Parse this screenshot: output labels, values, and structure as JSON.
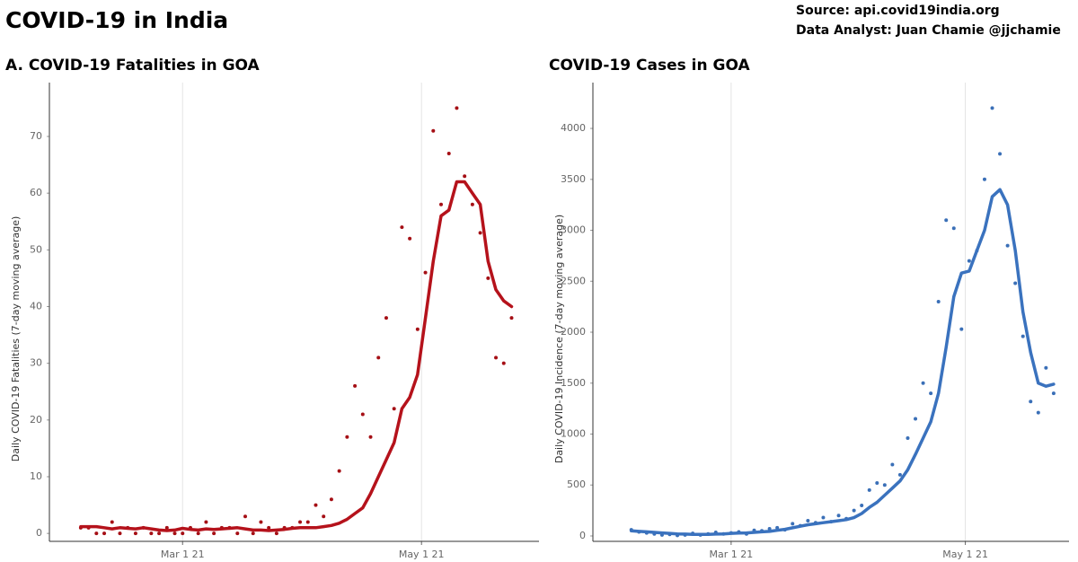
{
  "title": "COVID-19 in India",
  "source": "Source: api.covid19india.org",
  "analyst": "Data Analyst:  Juan Chamie @jjchamie",
  "chart_data": [
    {
      "type": "line",
      "title": "A. COVID-19 Fatalities in GOA",
      "y_label": "Daily COVID-19 Fatalities (7-day moving average)",
      "x": [
        "2021-02-03",
        "2021-02-05",
        "2021-02-07",
        "2021-02-09",
        "2021-02-11",
        "2021-02-13",
        "2021-02-15",
        "2021-02-17",
        "2021-02-19",
        "2021-02-21",
        "2021-02-23",
        "2021-02-25",
        "2021-02-27",
        "2021-03-01",
        "2021-03-03",
        "2021-03-05",
        "2021-03-07",
        "2021-03-09",
        "2021-03-11",
        "2021-03-13",
        "2021-03-15",
        "2021-03-17",
        "2021-03-19",
        "2021-03-21",
        "2021-03-23",
        "2021-03-25",
        "2021-03-27",
        "2021-03-29",
        "2021-03-31",
        "2021-04-02",
        "2021-04-04",
        "2021-04-06",
        "2021-04-08",
        "2021-04-10",
        "2021-04-12",
        "2021-04-14",
        "2021-04-16",
        "2021-04-18",
        "2021-04-20",
        "2021-04-22",
        "2021-04-24",
        "2021-04-26",
        "2021-04-28",
        "2021-04-30",
        "2021-05-02",
        "2021-05-04",
        "2021-05-06",
        "2021-05-08",
        "2021-05-10",
        "2021-05-12",
        "2021-05-14",
        "2021-05-16",
        "2021-05-18",
        "2021-05-20",
        "2021-05-22",
        "2021-05-24"
      ],
      "series": [
        {
          "kind": "points",
          "color": "#a50f15",
          "values": [
            1,
            1,
            0,
            0,
            2,
            0,
            1,
            0,
            1,
            0,
            0,
            1,
            0,
            0,
            1,
            0,
            2,
            0,
            1,
            1,
            0,
            3,
            0,
            2,
            1,
            0,
            1,
            1,
            2,
            2,
            5,
            3,
            6,
            11,
            17,
            26,
            21,
            17,
            31,
            38,
            22,
            54,
            52,
            36,
            46,
            71,
            58,
            67,
            75,
            63,
            58,
            53,
            45,
            31,
            30,
            38
          ]
        },
        {
          "kind": "line",
          "color": "#b5121b",
          "values": [
            1.2,
            1.2,
            1.2,
            1.0,
            0.8,
            1.0,
            0.9,
            0.8,
            1.0,
            0.8,
            0.6,
            0.5,
            0.6,
            0.9,
            0.7,
            0.6,
            0.8,
            0.7,
            0.8,
            0.9,
            1.0,
            0.8,
            0.6,
            0.6,
            0.5,
            0.6,
            0.7,
            0.9,
            1.0,
            1,
            1,
            1.2,
            1.4,
            1.8,
            2.5,
            3.5,
            4.5,
            7,
            10,
            13,
            16,
            22,
            24,
            28,
            38,
            48,
            56,
            57,
            62,
            62,
            60,
            58,
            48,
            43,
            41,
            40
          ]
        }
      ],
      "xlim": [
        "2021-01-26",
        "2021-05-31"
      ],
      "xticks": [
        {
          "value": "2021-03-01",
          "label": "Mar 1 21"
        },
        {
          "value": "2021-05-01",
          "label": "May 1 21"
        }
      ],
      "ylim": [
        -1.4,
        79.5
      ],
      "yticks": [
        0,
        10,
        20,
        30,
        40,
        50,
        60,
        70
      ],
      "grid": "x"
    },
    {
      "type": "line",
      "title": "COVID-19 Cases in GOA",
      "y_label": "Daily COVID-19 Incidence (7-day moving average)",
      "x": [
        "2021-02-03",
        "2021-02-05",
        "2021-02-07",
        "2021-02-09",
        "2021-02-11",
        "2021-02-13",
        "2021-02-15",
        "2021-02-17",
        "2021-02-19",
        "2021-02-21",
        "2021-02-23",
        "2021-02-25",
        "2021-02-27",
        "2021-03-01",
        "2021-03-03",
        "2021-03-05",
        "2021-03-07",
        "2021-03-09",
        "2021-03-11",
        "2021-03-13",
        "2021-03-15",
        "2021-03-17",
        "2021-03-19",
        "2021-03-21",
        "2021-03-23",
        "2021-03-25",
        "2021-03-27",
        "2021-03-29",
        "2021-03-31",
        "2021-04-02",
        "2021-04-04",
        "2021-04-06",
        "2021-04-08",
        "2021-04-10",
        "2021-04-12",
        "2021-04-14",
        "2021-04-16",
        "2021-04-18",
        "2021-04-20",
        "2021-04-22",
        "2021-04-24",
        "2021-04-26",
        "2021-04-28",
        "2021-04-30",
        "2021-05-02",
        "2021-05-04",
        "2021-05-06",
        "2021-05-08",
        "2021-05-10",
        "2021-05-12",
        "2021-05-14",
        "2021-05-16",
        "2021-05-18",
        "2021-05-20",
        "2021-05-22",
        "2021-05-24"
      ],
      "series": [
        {
          "kind": "points",
          "color": "#3a6fb7",
          "values": [
            60,
            40,
            30,
            20,
            10,
            15,
            5,
            10,
            25,
            10,
            20,
            35,
            20,
            30,
            40,
            20,
            55,
            50,
            70,
            80,
            60,
            120,
            100,
            150,
            130,
            180,
            140,
            200,
            170,
            250,
            300,
            450,
            520,
            500,
            700,
            600,
            960,
            1150,
            1500,
            1400,
            2300,
            3100,
            3020,
            2030,
            2700,
            2800,
            3500,
            4200,
            3750,
            2850,
            2480,
            1960,
            1320,
            1210,
            1650,
            1400
          ]
        },
        {
          "kind": "line",
          "color": "#3a72be",
          "values": [
            50,
            45,
            40,
            35,
            30,
            25,
            20,
            18,
            15,
            15,
            15,
            18,
            20,
            25,
            28,
            30,
            35,
            40,
            45,
            55,
            65,
            80,
            95,
            110,
            120,
            130,
            140,
            150,
            160,
            180,
            220,
            280,
            330,
            400,
            470,
            540,
            650,
            800,
            960,
            1120,
            1400,
            1850,
            2350,
            2580,
            2600,
            2800,
            3000,
            3330,
            3400,
            3250,
            2800,
            2200,
            1800,
            1500,
            1470,
            1490
          ]
        }
      ],
      "xlim": [
        "2021-01-24",
        "2021-05-28"
      ],
      "xticks": [
        {
          "value": "2021-03-01",
          "label": "Mar 1 21"
        },
        {
          "value": "2021-05-01",
          "label": "May 1 21"
        }
      ],
      "ylim": [
        -53,
        4450
      ],
      "yticks": [
        0,
        500,
        1000,
        1500,
        2000,
        2500,
        3000,
        3500,
        4000
      ],
      "grid": "x"
    }
  ]
}
